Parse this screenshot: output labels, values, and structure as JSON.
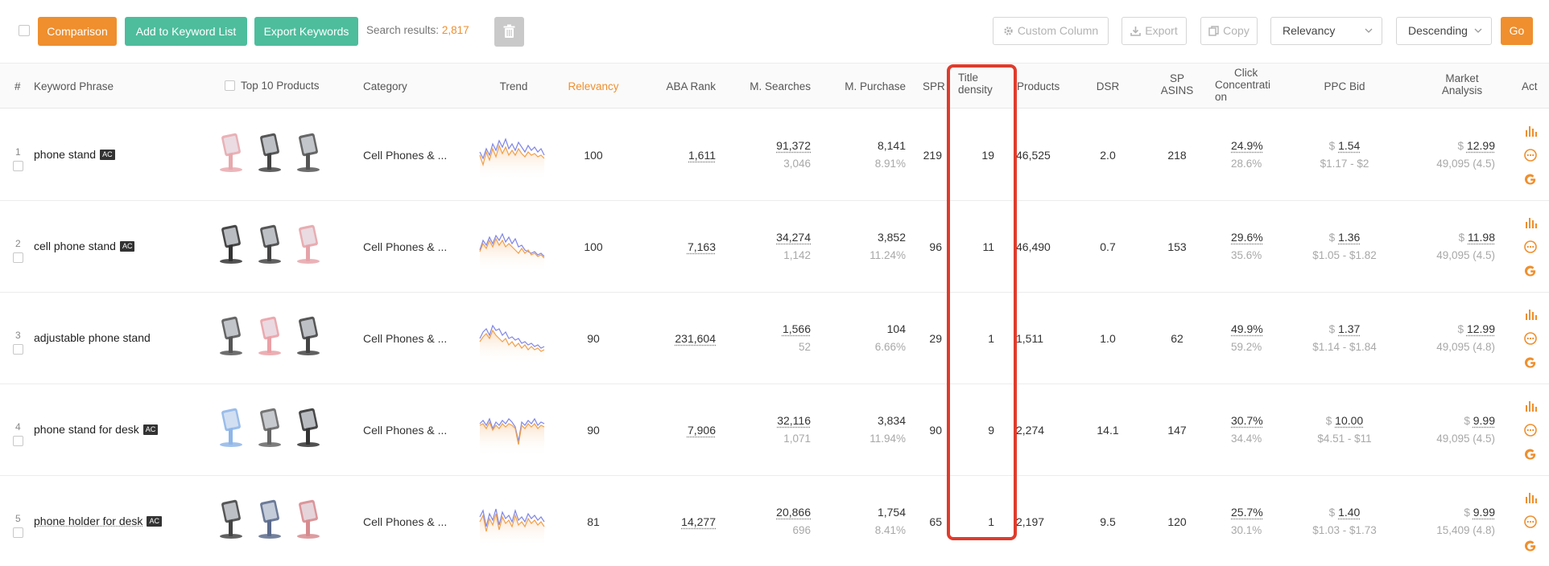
{
  "toolbar": {
    "comparison": "Comparison",
    "add_to_list": "Add to Keyword List",
    "export_keywords": "Export Keywords",
    "search_results_label": "Search results:",
    "search_results_count": "2,817",
    "custom_column": "Custom Column",
    "export": "Export",
    "copy": "Copy",
    "sort_field": "Relevancy",
    "sort_order": "Descending",
    "go": "Go"
  },
  "columns": {
    "num": "#",
    "keyword": "Keyword Phrase",
    "top10": "Top 10 Products",
    "category": "Category",
    "trend": "Trend",
    "relevancy": "Relevancy",
    "aba_rank": "ABA Rank",
    "m_searches": "M. Searches",
    "m_purchase": "M. Purchase",
    "spr": "SPR",
    "title_density_1": "Title",
    "title_density_2": "density",
    "products": "Products",
    "dsr": "DSR",
    "sp_asins_1": "SP",
    "sp_asins_2": "ASINS",
    "click_1": "Click",
    "click_2": "Concentrati",
    "click_3": "on",
    "ppc_bid": "PPC Bid",
    "market_1": "Market",
    "market_2": "Analysis",
    "act": "Act"
  },
  "rows": [
    {
      "num": "1",
      "keyword": "phone stand",
      "badge": "AC",
      "category": "Cell Phones & ...",
      "relevancy": "100",
      "aba_rank": "1,611",
      "searches": "91,372",
      "searches_sub": "3,046",
      "purchase": "8,141",
      "purchase_sub": "8.91%",
      "spr": "219",
      "title_density": "19",
      "products": "46,525",
      "dsr": "2.0",
      "sp_asins": "218",
      "click": "24.9%",
      "click_sub": "28.6%",
      "ppc_cur": "$",
      "ppc": "1.54",
      "ppc_range": "$1.17 - $2",
      "mkt_cur": "$",
      "mkt": "12.99",
      "mkt_sub": "49,095 (4.5)"
    },
    {
      "num": "2",
      "keyword": "cell phone stand",
      "badge": "AC",
      "category": "Cell Phones & ...",
      "relevancy": "100",
      "aba_rank": "7,163",
      "searches": "34,274",
      "searches_sub": "1,142",
      "purchase": "3,852",
      "purchase_sub": "11.24%",
      "spr": "96",
      "title_density": "11",
      "products": "46,490",
      "dsr": "0.7",
      "sp_asins": "153",
      "click": "29.6%",
      "click_sub": "35.6%",
      "ppc_cur": "$",
      "ppc": "1.36",
      "ppc_range": "$1.05 - $1.82",
      "mkt_cur": "$",
      "mkt": "11.98",
      "mkt_sub": "49,095 (4.5)"
    },
    {
      "num": "3",
      "keyword": "adjustable phone stand",
      "badge": "",
      "category": "Cell Phones & ...",
      "relevancy": "90",
      "aba_rank": "231,604",
      "searches": "1,566",
      "searches_sub": "52",
      "purchase": "104",
      "purchase_sub": "6.66%",
      "spr": "29",
      "title_density": "1",
      "products": "1,511",
      "dsr": "1.0",
      "sp_asins": "62",
      "click": "49.9%",
      "click_sub": "59.2%",
      "ppc_cur": "$",
      "ppc": "1.37",
      "ppc_range": "$1.14 - $1.84",
      "mkt_cur": "$",
      "mkt": "12.99",
      "mkt_sub": "49,095 (4.8)"
    },
    {
      "num": "4",
      "keyword": "phone stand for desk",
      "badge": "AC",
      "category": "Cell Phones & ...",
      "relevancy": "90",
      "aba_rank": "7,906",
      "searches": "32,116",
      "searches_sub": "1,071",
      "purchase": "3,834",
      "purchase_sub": "11.94%",
      "spr": "90",
      "title_density": "9",
      "products": "2,274",
      "dsr": "14.1",
      "sp_asins": "147",
      "click": "30.7%",
      "click_sub": "34.4%",
      "ppc_cur": "$",
      "ppc": "10.00",
      "ppc_range": "$4.51 - $11",
      "mkt_cur": "$",
      "mkt": "9.99",
      "mkt_sub": "49,095 (4.5)"
    },
    {
      "num": "5",
      "keyword": "phone holder for desk",
      "badge": "AC",
      "category": "Cell Phones & ...",
      "relevancy": "81",
      "aba_rank": "14,277",
      "searches": "20,866",
      "searches_sub": "696",
      "purchase": "1,754",
      "purchase_sub": "8.41%",
      "spr": "65",
      "title_density": "1",
      "products": "2,197",
      "dsr": "9.5",
      "sp_asins": "120",
      "click": "25.7%",
      "click_sub": "30.1%",
      "ppc_cur": "$",
      "ppc": "1.40",
      "ppc_range": "$1.03 - $1.73",
      "mkt_cur": "$",
      "mkt": "9.99",
      "mkt_sub": "15,409 (4.8)"
    }
  ],
  "colors": {
    "accent": "#ef8f2e",
    "green": "#4dbd9c",
    "highlight": "#e03b2c"
  }
}
